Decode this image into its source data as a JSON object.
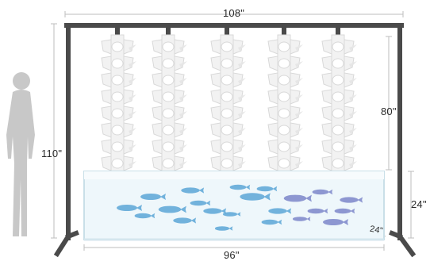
{
  "labels": {
    "frame_width": "108\"",
    "frame_height": "110\"",
    "tower_height": "80\"",
    "tank_height": "24\"",
    "tank_depth": "24\"",
    "tank_length": "96\""
  },
  "towers": {
    "count": 5,
    "pods_per_tower": 8
  },
  "fish": {
    "count": 22
  },
  "colors": {
    "frame": "#4a4a4a",
    "tower": "#f2f2f2",
    "tower_shade": "#d9d9d9",
    "tank_water": "#eef7fb",
    "tank_edge": "#c9dfe8",
    "person": "#c8c8c8",
    "dimension_line": "#bdbdbd",
    "fish_blue": "#5aa6d6",
    "fish_purple": "#7b86c9"
  }
}
